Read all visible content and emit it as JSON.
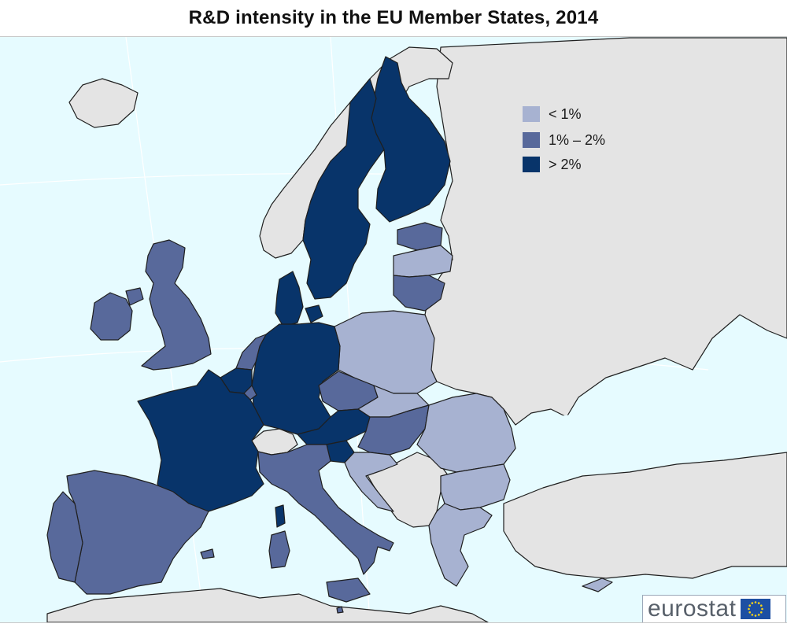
{
  "title": "R&D intensity in the EU Member States, 2014",
  "colors": {
    "sea": "#e6fbff",
    "land_other": "#e4e4e4",
    "border": "#1f1f1f",
    "class_low": "#a7b2d1",
    "class_mid": "#58699b",
    "class_high": "#08346a"
  },
  "legend": {
    "items": [
      {
        "label": "< 1%",
        "class": "low",
        "color": "#a7b2d1"
      },
      {
        "label": "1% – 2%",
        "class": "mid",
        "color": "#58699b"
      },
      {
        "label": "> 2%",
        "class": "high",
        "color": "#08346a"
      }
    ]
  },
  "regions": [
    {
      "name": "Ireland",
      "class": "mid"
    },
    {
      "name": "United Kingdom",
      "class": "mid"
    },
    {
      "name": "Portugal",
      "class": "mid"
    },
    {
      "name": "Spain",
      "class": "mid"
    },
    {
      "name": "France",
      "class": "high"
    },
    {
      "name": "Belgium",
      "class": "high"
    },
    {
      "name": "Netherlands",
      "class": "mid"
    },
    {
      "name": "Luxembourg",
      "class": "mid"
    },
    {
      "name": "Germany",
      "class": "high"
    },
    {
      "name": "Denmark",
      "class": "high"
    },
    {
      "name": "Sweden",
      "class": "high"
    },
    {
      "name": "Finland",
      "class": "high"
    },
    {
      "name": "Estonia",
      "class": "mid"
    },
    {
      "name": "Latvia",
      "class": "low"
    },
    {
      "name": "Lithuania",
      "class": "mid"
    },
    {
      "name": "Poland",
      "class": "low"
    },
    {
      "name": "Czech Republic",
      "class": "mid"
    },
    {
      "name": "Slovakia",
      "class": "low"
    },
    {
      "name": "Austria",
      "class": "high"
    },
    {
      "name": "Slovenia",
      "class": "high"
    },
    {
      "name": "Hungary",
      "class": "mid"
    },
    {
      "name": "Croatia",
      "class": "low"
    },
    {
      "name": "Romania",
      "class": "low"
    },
    {
      "name": "Bulgaria",
      "class": "low"
    },
    {
      "name": "Greece",
      "class": "low"
    },
    {
      "name": "Italy",
      "class": "mid"
    },
    {
      "name": "Malta",
      "class": "mid"
    },
    {
      "name": "Cyprus",
      "class": "low"
    }
  ],
  "logo": {
    "text": "eurostat",
    "flag_icon": "eu-flag-icon"
  }
}
